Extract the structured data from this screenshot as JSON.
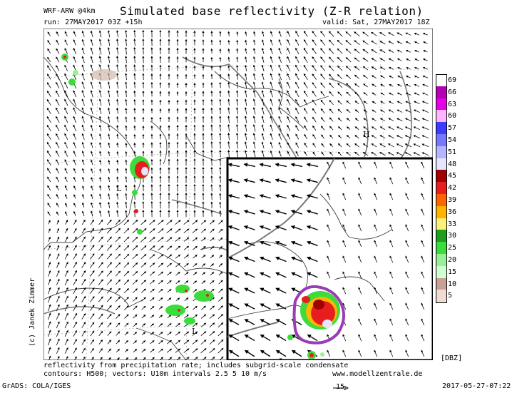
{
  "header": {
    "model": "WRF-ARW @4km",
    "title": "Simulated base reflectivity (Z-R relation)",
    "run": "run: 27MAY2017 03Z +15h",
    "valid": "valid: Sat, 27MAY2017 18Z"
  },
  "map": {
    "pressure_labels": [
      {
        "name": "high-label",
        "text": "H"
      },
      {
        "name": "low-label-1",
        "text": "L"
      },
      {
        "name": "low-label-2",
        "text": "L"
      },
      {
        "name": "low-label-inset",
        "text": "L"
      }
    ]
  },
  "legend": {
    "unit": "[DBZ]",
    "levels": [
      {
        "value": "69",
        "color": "#ffffff"
      },
      {
        "value": "66",
        "color": "#b400b4"
      },
      {
        "value": "63",
        "color": "#e600e6"
      },
      {
        "value": "60",
        "color": "#ffb4ff"
      },
      {
        "value": "57",
        "color": "#3c3cff"
      },
      {
        "value": "54",
        "color": "#7878ff"
      },
      {
        "value": "51",
        "color": "#b4b4ff"
      },
      {
        "value": "48",
        "color": "#e6e6ff"
      },
      {
        "value": "45",
        "color": "#a00000"
      },
      {
        "value": "42",
        "color": "#e61e1e"
      },
      {
        "value": "39",
        "color": "#ff6400"
      },
      {
        "value": "36",
        "color": "#ffb400"
      },
      {
        "value": "33",
        "color": "#fff078"
      },
      {
        "value": "30",
        "color": "#1ea01e"
      },
      {
        "value": "25",
        "color": "#3cdc3c"
      },
      {
        "value": "20",
        "color": "#96f096"
      },
      {
        "value": "15",
        "color": "#d2ffd2"
      },
      {
        "value": "10",
        "color": "#c8a096"
      },
      {
        "value": "5",
        "color": "#f0dcd2"
      }
    ]
  },
  "footer": {
    "line1": "reflectivity from precipitation rate; includes subgrid-scale condensate",
    "line2": "contours: H500; vectors: U10m intervals 2.5 5 10 m/s",
    "website": "www.modellzentrale.de",
    "grads": "GrADS: COLA/IGES",
    "vector_ref": "15",
    "timestamp": "2017-05-27-07:22",
    "author": "(c) Janek Zimmer"
  }
}
